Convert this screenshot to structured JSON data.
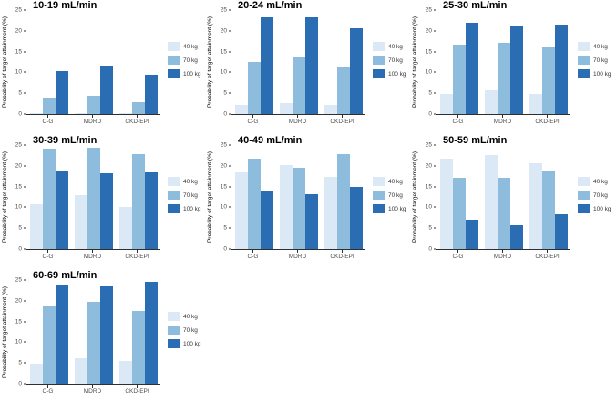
{
  "figure": {
    "ylabel": "Probability of target attainment (%)",
    "yticks": [
      0,
      5,
      10,
      15,
      20,
      25
    ],
    "ylim": [
      0,
      25
    ],
    "categories": [
      "C-G",
      "MDRD",
      "CKD-EPI"
    ],
    "legend": [
      {
        "label": "40 kg",
        "color": "#dbe9f6"
      },
      {
        "label": "70 kg",
        "color": "#8ebcdc"
      },
      {
        "label": "100 kg",
        "color": "#2b6db2"
      }
    ],
    "legend_position": "right",
    "grid": "off",
    "axis_color": "#2f2f2f",
    "tick_text_color": "#4d4d4d",
    "title_color": "#000000"
  },
  "chart_data": [
    {
      "type": "bar",
      "title": "10-19 mL/min",
      "xlabel": "",
      "ylabel": "Probability of target attainment (%)",
      "ylim": [
        0,
        25
      ],
      "categories": [
        "C-G",
        "MDRD",
        "CKD-EPI"
      ],
      "series": [
        {
          "name": "40 kg",
          "values": [
            0.2,
            0.2,
            0.2
          ]
        },
        {
          "name": "70 kg",
          "values": [
            4.0,
            4.4,
            2.9
          ]
        },
        {
          "name": "100 kg",
          "values": [
            10.4,
            11.6,
            9.5
          ]
        }
      ]
    },
    {
      "type": "bar",
      "title": "20-24 mL/min",
      "xlabel": "",
      "ylabel": "Probability of target attainment (%)",
      "ylim": [
        0,
        25
      ],
      "categories": [
        "C-G",
        "MDRD",
        "CKD-EPI"
      ],
      "series": [
        {
          "name": "40 kg",
          "values": [
            2.3,
            2.6,
            2.1
          ]
        },
        {
          "name": "70 kg",
          "values": [
            12.4,
            13.5,
            11.1
          ]
        },
        {
          "name": "100 kg",
          "values": [
            23.3,
            23.2,
            20.7
          ]
        }
      ]
    },
    {
      "type": "bar",
      "title": "25-30 mL/min",
      "xlabel": "",
      "ylabel": "Probability of target attainment (%)",
      "ylim": [
        0,
        25
      ],
      "categories": [
        "C-G",
        "MDRD",
        "CKD-EPI"
      ],
      "series": [
        {
          "name": "40 kg",
          "values": [
            4.9,
            5.7,
            4.8
          ]
        },
        {
          "name": "70 kg",
          "values": [
            16.6,
            17.1,
            16.0
          ]
        },
        {
          "name": "100 kg",
          "values": [
            22.0,
            21.1,
            21.5
          ]
        }
      ]
    },
    {
      "type": "bar",
      "title": "30-39 mL/min",
      "xlabel": "",
      "ylabel": "Probability of target attainment (%)",
      "ylim": [
        0,
        25
      ],
      "categories": [
        "C-G",
        "MDRD",
        "CKD-EPI"
      ],
      "series": [
        {
          "name": "40 kg",
          "values": [
            10.7,
            12.9,
            10.1
          ]
        },
        {
          "name": "70 kg",
          "values": [
            24.1,
            24.3,
            22.9
          ]
        },
        {
          "name": "100 kg",
          "values": [
            18.7,
            18.3,
            18.5
          ]
        }
      ]
    },
    {
      "type": "bar",
      "title": "40-49 mL/min",
      "xlabel": "",
      "ylabel": "Probability of target attainment (%)",
      "ylim": [
        0,
        25
      ],
      "categories": [
        "C-G",
        "MDRD",
        "CKD-EPI"
      ],
      "series": [
        {
          "name": "40 kg",
          "values": [
            18.4,
            20.2,
            17.4
          ]
        },
        {
          "name": "70 kg",
          "values": [
            21.7,
            19.5,
            22.8
          ]
        },
        {
          "name": "100 kg",
          "values": [
            14.1,
            13.2,
            14.9
          ]
        }
      ]
    },
    {
      "type": "bar",
      "title": "50-59 mL/min",
      "xlabel": "",
      "ylabel": "Probability of target attainment (%)",
      "ylim": [
        0,
        25
      ],
      "categories": [
        "C-G",
        "MDRD",
        "CKD-EPI"
      ],
      "series": [
        {
          "name": "40 kg",
          "values": [
            21.8,
            22.6,
            20.7
          ]
        },
        {
          "name": "70 kg",
          "values": [
            17.2,
            17.1,
            18.7
          ]
        },
        {
          "name": "100 kg",
          "values": [
            7.0,
            5.7,
            8.3
          ]
        }
      ]
    },
    {
      "type": "bar",
      "title": "60-69 mL/min",
      "xlabel": "",
      "ylabel": "Probability of target attainment (%)",
      "ylim": [
        0,
        25
      ],
      "categories": [
        "C-G",
        "MDRD",
        "CKD-EPI"
      ],
      "series": [
        {
          "name": "40 kg",
          "values": [
            4.8,
            6.2,
            5.5
          ]
        },
        {
          "name": "70 kg",
          "values": [
            18.9,
            19.8,
            17.6
          ]
        },
        {
          "name": "100 kg",
          "values": [
            23.7,
            23.5,
            24.6
          ]
        }
      ]
    }
  ]
}
